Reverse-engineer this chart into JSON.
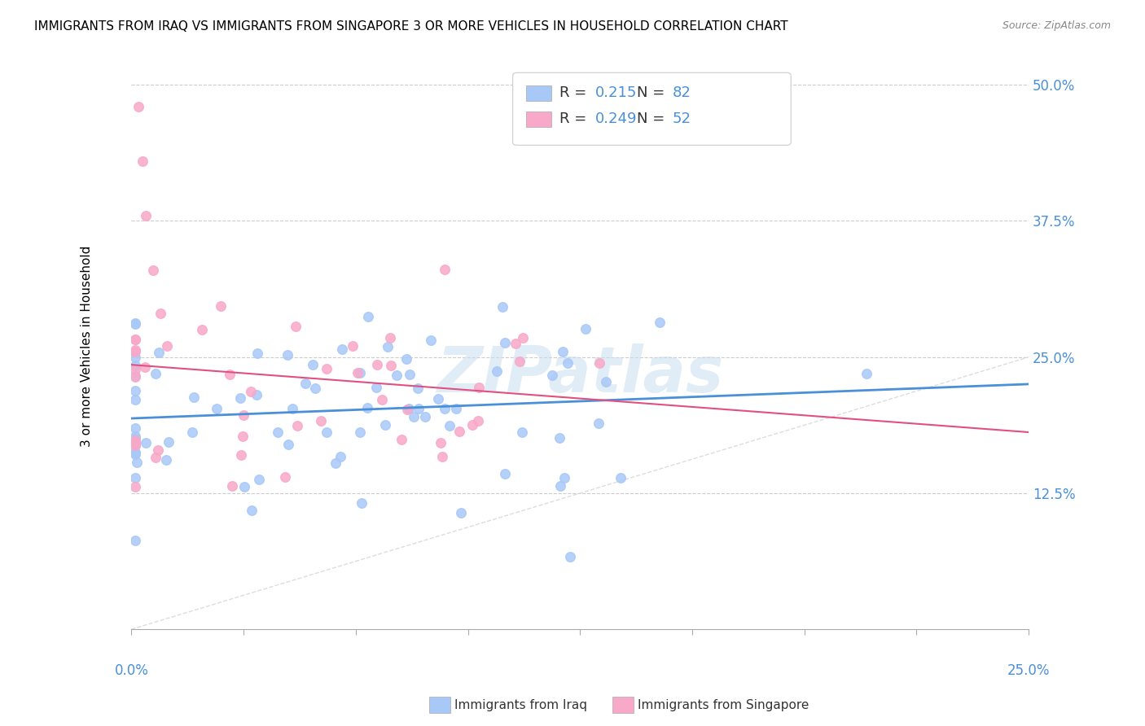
{
  "title": "IMMIGRANTS FROM IRAQ VS IMMIGRANTS FROM SINGAPORE 3 OR MORE VEHICLES IN HOUSEHOLD CORRELATION CHART",
  "source": "Source: ZipAtlas.com",
  "ylabel_text": "3 or more Vehicles in Household",
  "legend_iraq": "Immigrants from Iraq",
  "legend_singapore": "Immigrants from Singapore",
  "R_iraq": 0.215,
  "N_iraq": 82,
  "R_singapore": 0.249,
  "N_singapore": 52,
  "xlim": [
    0.0,
    0.25
  ],
  "ylim": [
    0.0,
    0.52
  ],
  "color_iraq": "#a8c8f8",
  "color_singapore": "#f8a8c8",
  "color_line_iraq": "#4a90d9",
  "color_line_singapore": "#e05080",
  "color_diag": "#dddddd",
  "watermark": "ZIPatlas",
  "ytick_vals": [
    0.125,
    0.25,
    0.375,
    0.5
  ],
  "ytick_labels": [
    "12.5%",
    "25.0%",
    "37.5%",
    "50.0%"
  ],
  "xtick_vals": [
    0.0,
    0.03125,
    0.0625,
    0.09375,
    0.125,
    0.15625,
    0.1875,
    0.21875,
    0.25
  ]
}
